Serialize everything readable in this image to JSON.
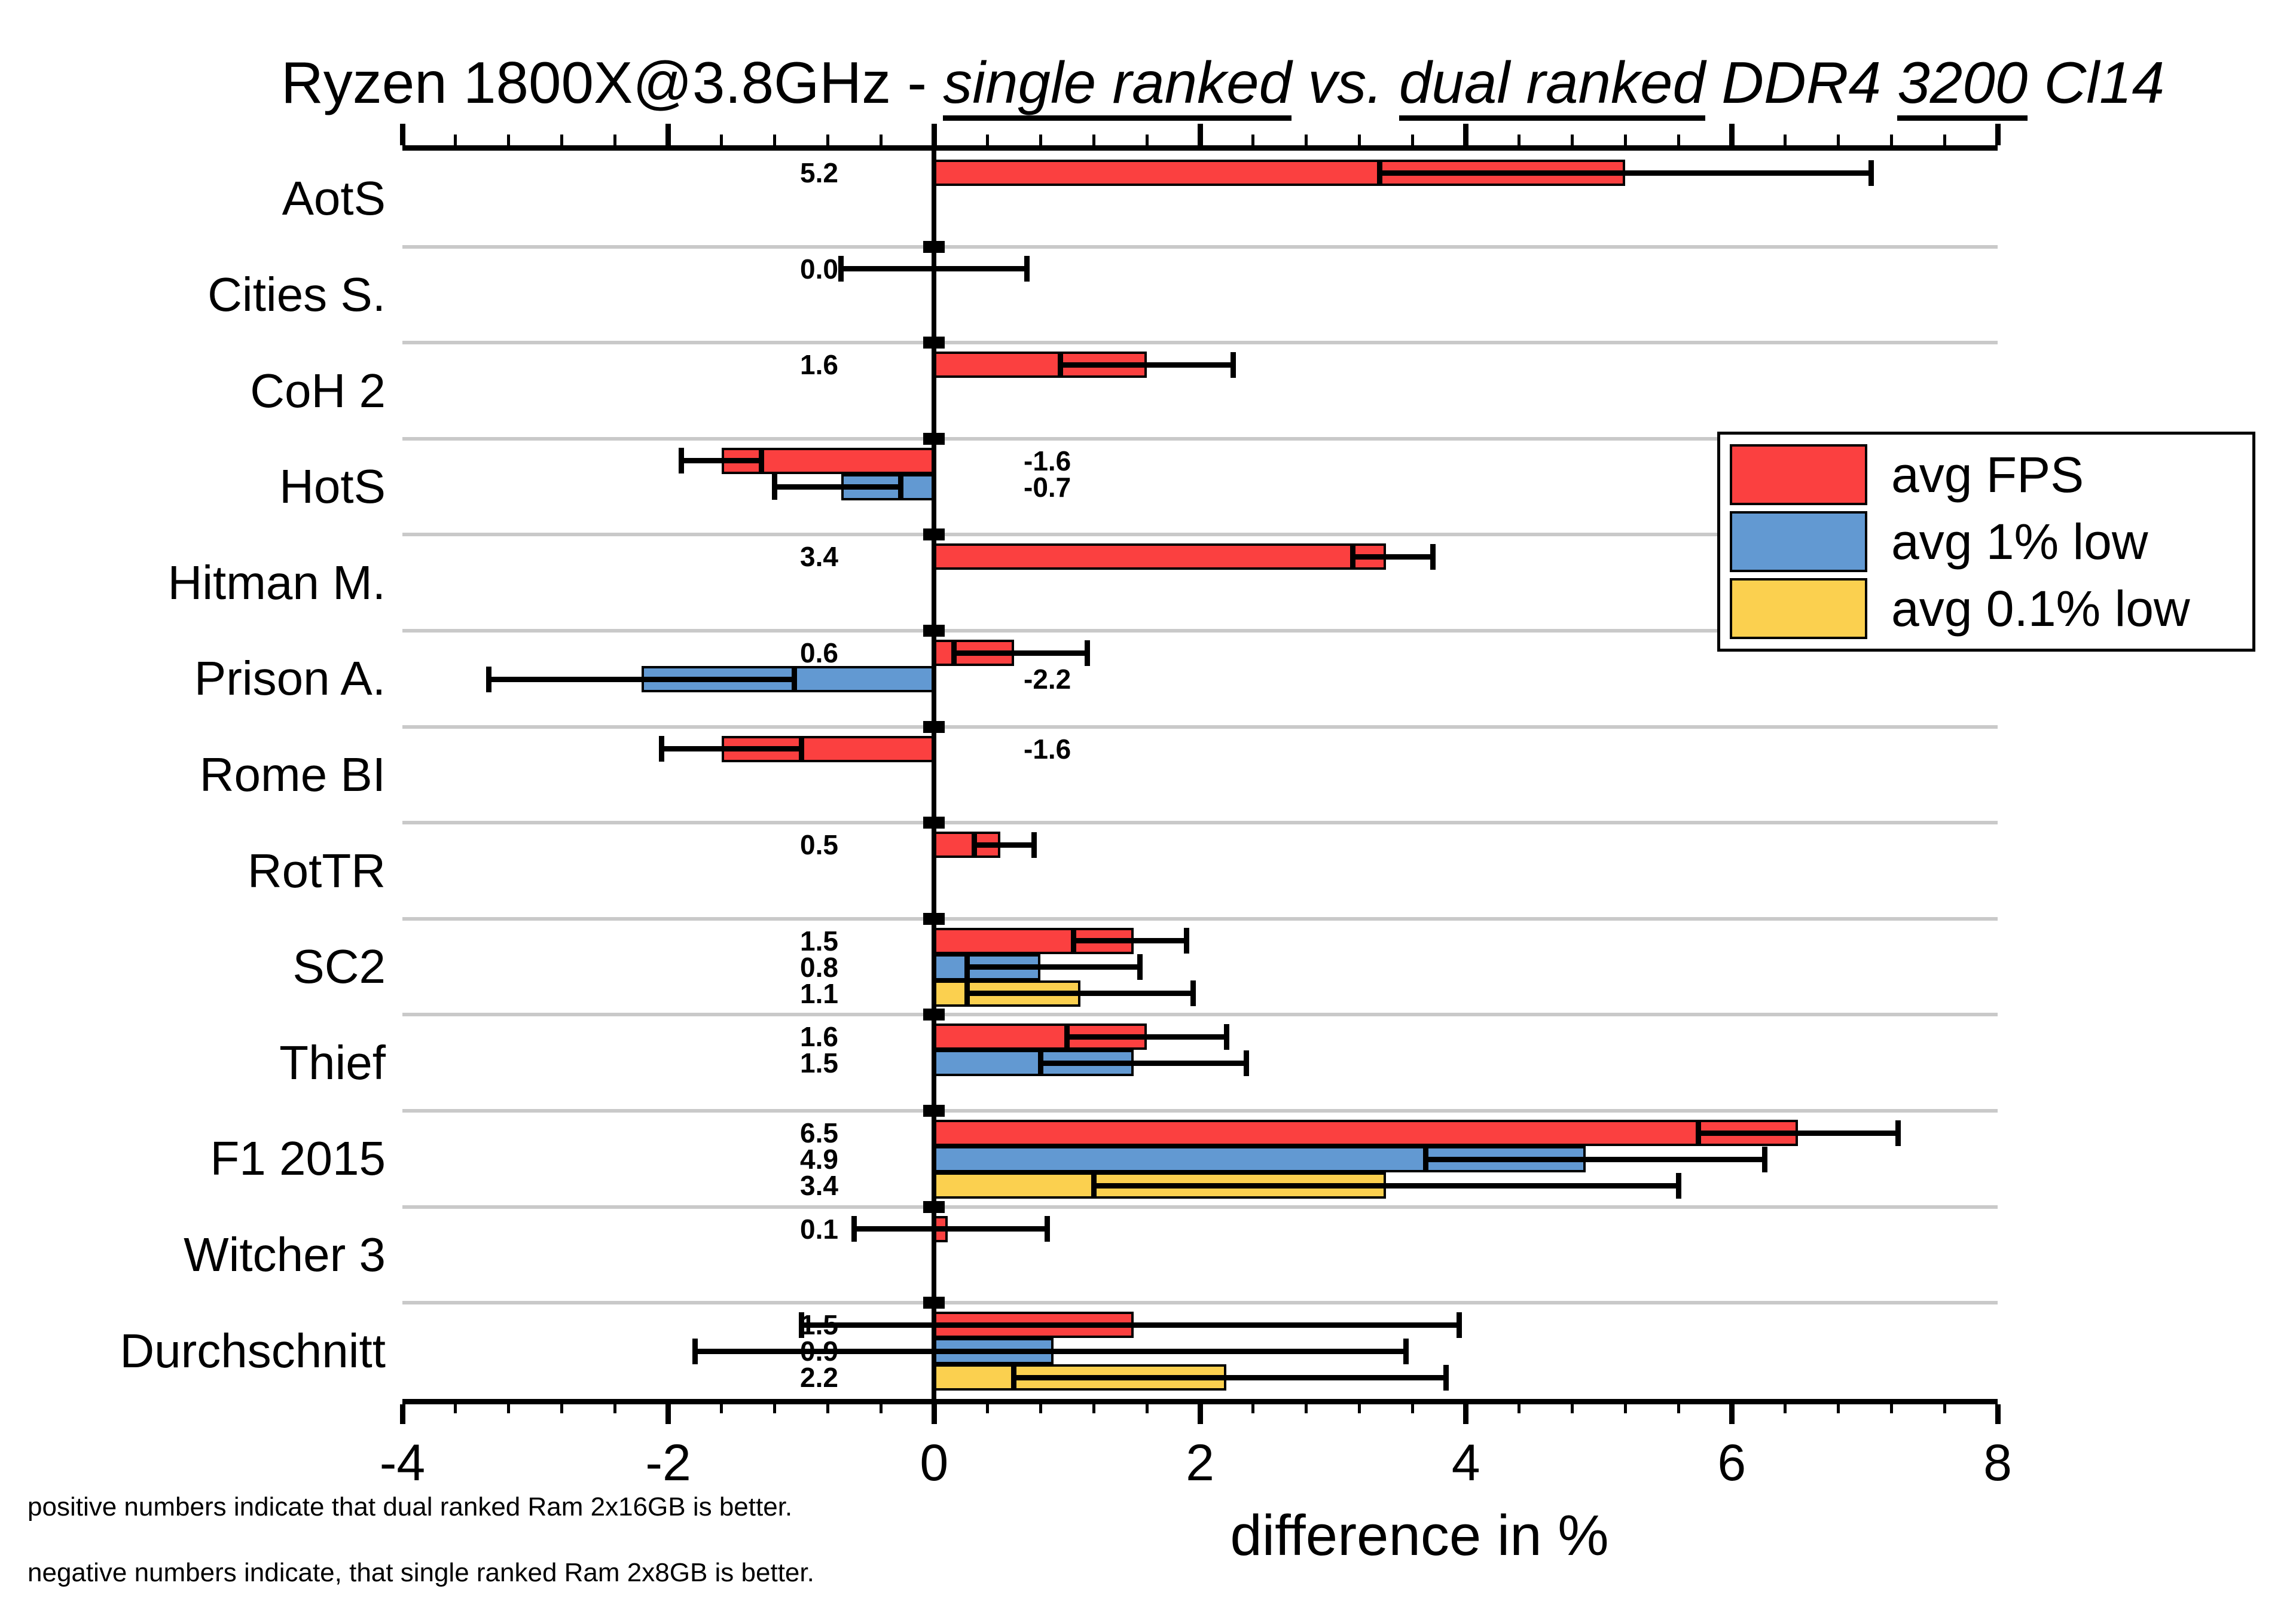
{
  "title": {
    "parts": [
      {
        "text": "Ryzen 1800X@3.8GHz - ",
        "style": "plain"
      },
      {
        "text": "single ranked",
        "style": "italic-underline"
      },
      {
        "text": " vs. ",
        "style": "italic"
      },
      {
        "text": "dual ranked",
        "style": "italic-underline"
      },
      {
        "text": " DDR4 ",
        "style": "italic"
      },
      {
        "text": "3200",
        "style": "italic-underline"
      },
      {
        "text": " Cl14",
        "style": "italic"
      }
    ]
  },
  "legend": {
    "items": [
      {
        "label": "avg FPS",
        "color": "#FB4040"
      },
      {
        "label": "avg 1% low",
        "color": "#6299D2"
      },
      {
        "label": "avg 0.1% low",
        "color": "#FBD04F"
      }
    ]
  },
  "footnotes": [
    "positive numbers indicate that dual ranked Ram 2x16GB is better.",
    "negative numbers indicate, that single ranked Ram 2x8GB is better."
  ],
  "chart_data": {
    "type": "bar",
    "orientation": "horizontal",
    "title": "Ryzen 1800X@3.8GHz - single ranked vs. dual ranked DDR4 3200 Cl14",
    "xlabel": "difference in %",
    "axis": {
      "min": -4,
      "max": 8,
      "major_tick": 2,
      "minor_tick": 0.4,
      "tick_labels": [
        "-4",
        "-2",
        "0",
        "2",
        "4",
        "6",
        "8"
      ],
      "grid": false
    },
    "series_colors": {
      "avg FPS": "#FB4040",
      "avg 1% low": "#6299D2",
      "avg 0.1% low": "#FBD04F"
    },
    "categories": [
      {
        "name": "AotS",
        "bars": [
          {
            "series": "avg FPS",
            "value": 5.2,
            "label": "5.2",
            "err": [
              3.35,
              7.05
            ]
          }
        ]
      },
      {
        "name": "Cities S.",
        "bars": [
          {
            "series": "avg FPS",
            "value": 0.0,
            "label": "0.0",
            "err": [
              -0.7,
              0.7
            ]
          }
        ]
      },
      {
        "name": "CoH 2",
        "bars": [
          {
            "series": "avg FPS",
            "value": 1.6,
            "label": "1.6",
            "err": [
              0.95,
              2.25
            ]
          }
        ]
      },
      {
        "name": "HotS",
        "bars": [
          {
            "series": "avg FPS",
            "value": -1.6,
            "label": "-1.6",
            "err": [
              -1.9,
              -1.3
            ]
          },
          {
            "series": "avg 1% low",
            "value": -0.7,
            "label": "-0.7",
            "err": [
              -1.2,
              -0.25
            ]
          }
        ]
      },
      {
        "name": "Hitman M.",
        "bars": [
          {
            "series": "avg FPS",
            "value": 3.4,
            "label": "3.4",
            "err": [
              3.15,
              3.75
            ]
          }
        ]
      },
      {
        "name": "Prison A.",
        "bars": [
          {
            "series": "avg FPS",
            "value": 0.6,
            "label": "0.6",
            "err": [
              0.15,
              1.15
            ]
          },
          {
            "series": "avg 1% low",
            "value": -2.2,
            "label": "-2.2",
            "err": [
              -3.35,
              -1.05
            ]
          }
        ]
      },
      {
        "name": "Rome BI",
        "bars": [
          {
            "series": "avg FPS",
            "value": -1.6,
            "label": "-1.6",
            "err": [
              -2.05,
              -1.0
            ]
          }
        ]
      },
      {
        "name": "RotTR",
        "bars": [
          {
            "series": "avg FPS",
            "value": 0.5,
            "label": "0.5",
            "err": [
              0.3,
              0.75
            ]
          }
        ]
      },
      {
        "name": "SC2",
        "bars": [
          {
            "series": "avg FPS",
            "value": 1.5,
            "label": "1.5",
            "err": [
              1.05,
              1.9
            ]
          },
          {
            "series": "avg 1% low",
            "value": 0.8,
            "label": "0.8",
            "err": [
              0.25,
              1.55
            ]
          },
          {
            "series": "avg 0.1% low",
            "value": 1.1,
            "label": "1.1",
            "err": [
              0.25,
              1.95
            ]
          }
        ]
      },
      {
        "name": "Thief",
        "bars": [
          {
            "series": "avg FPS",
            "value": 1.6,
            "label": "1.6",
            "err": [
              1.0,
              2.2
            ]
          },
          {
            "series": "avg 1% low",
            "value": 1.5,
            "label": "1.5",
            "err": [
              0.8,
              2.35
            ]
          }
        ]
      },
      {
        "name": "F1 2015",
        "bars": [
          {
            "series": "avg FPS",
            "value": 6.5,
            "label": "6.5",
            "err": [
              5.75,
              7.25
            ]
          },
          {
            "series": "avg 1% low",
            "value": 4.9,
            "label": "4.9",
            "err": [
              3.7,
              6.25
            ]
          },
          {
            "series": "avg 0.1% low",
            "value": 3.4,
            "label": "3.4",
            "err": [
              1.2,
              5.6
            ]
          }
        ]
      },
      {
        "name": "Witcher 3",
        "bars": [
          {
            "series": "avg FPS",
            "value": 0.1,
            "label": "0.1",
            "err": [
              -0.6,
              0.85
            ]
          }
        ]
      },
      {
        "name": "Durchschnitt",
        "bars": [
          {
            "series": "avg FPS",
            "value": 1.5,
            "label": "1.5",
            "err": [
              -1.0,
              3.95
            ]
          },
          {
            "series": "avg 1% low",
            "value": 0.9,
            "label": "0.9",
            "err": [
              -1.8,
              3.55
            ]
          },
          {
            "series": "avg 0.1% low",
            "value": 2.2,
            "label": "2.2",
            "err": [
              0.6,
              3.85
            ]
          }
        ]
      }
    ]
  }
}
